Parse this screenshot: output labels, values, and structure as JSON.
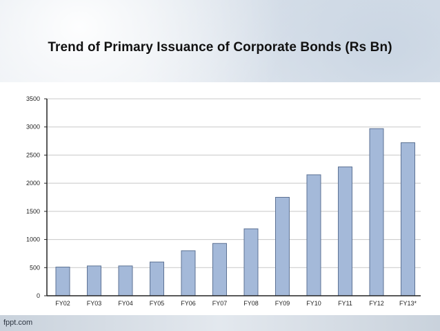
{
  "slide": {
    "title": "Trend of Primary Issuance of Corporate Bonds (Rs Bn)",
    "brand": "fppt.com"
  },
  "colors": {
    "bar_fill": "#a4b9d9",
    "bar_stroke": "#5d7294",
    "gridline": "#c8c8c8",
    "axis": "#222222"
  },
  "chart_data": {
    "type": "bar",
    "categories": [
      "FY02",
      "FY03",
      "FY04",
      "FY05",
      "FY06",
      "FY07",
      "FY08",
      "FY09",
      "FY10",
      "FY11",
      "FY12",
      "FY13*"
    ],
    "values": [
      510,
      530,
      530,
      600,
      800,
      930,
      1190,
      1750,
      2150,
      2290,
      2970,
      2720
    ],
    "yticks": [
      "0",
      "500",
      "1000",
      "1500",
      "2000",
      "2500",
      "3000",
      "3500"
    ],
    "ylim": [
      0,
      3500
    ],
    "title": "",
    "xlabel": "",
    "ylabel": "",
    "grid": true,
    "legend": "none"
  }
}
